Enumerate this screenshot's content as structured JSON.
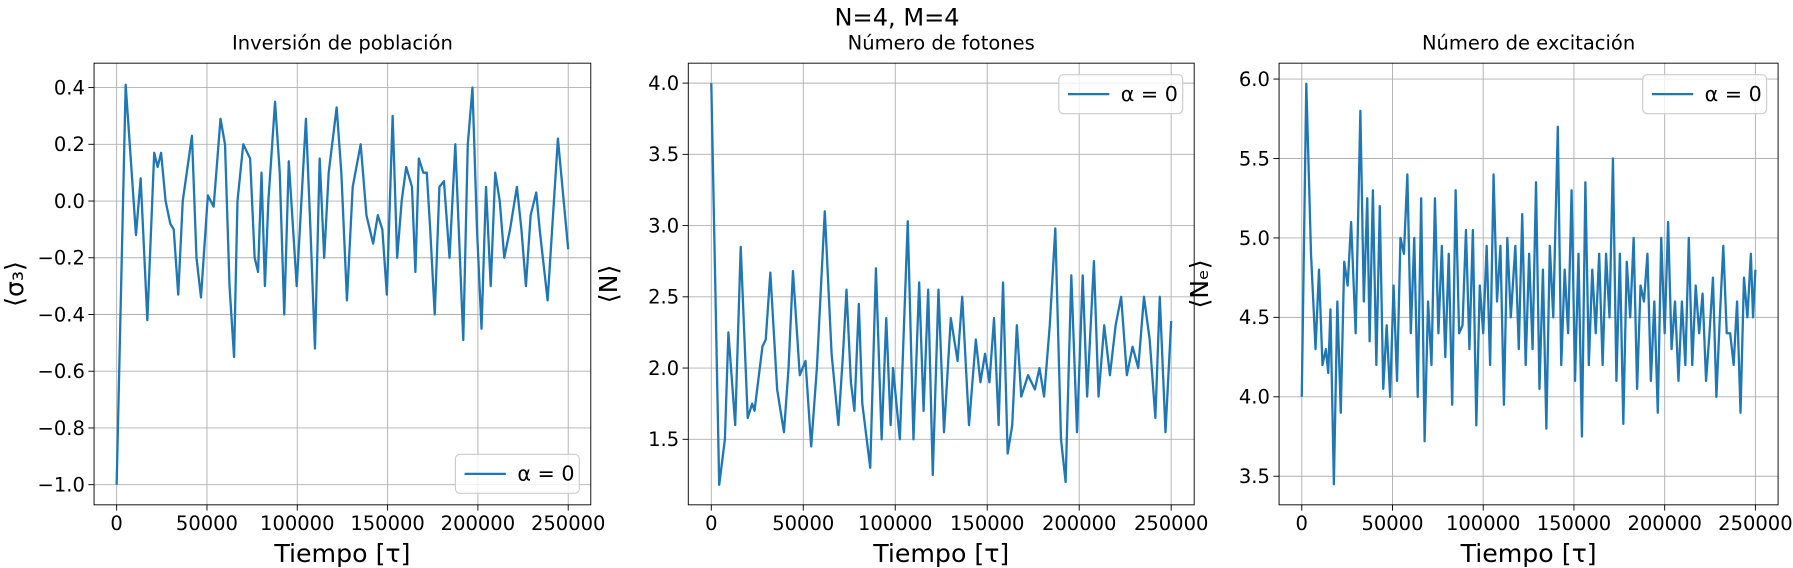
{
  "title": "N=4, M=4",
  "chart_data": [
    {
      "type": "line",
      "title": "Inversión de población",
      "xlabel": "Tiempo [τ]",
      "ylabel": "⟨σ₃⟩",
      "grid": true,
      "legend": "lower right",
      "xlim": [
        -12500,
        262500
      ],
      "xticks": [
        0,
        50000,
        100000,
        150000,
        200000,
        250000
      ],
      "ylim": [
        -1.071,
        0.486
      ],
      "yticks": [
        {
          "value": -1.0,
          "label": "−1.0"
        },
        {
          "value": -0.8,
          "label": "−0.8"
        },
        {
          "value": -0.6,
          "label": "−0.6"
        },
        {
          "value": -0.4,
          "label": "−0.4"
        },
        {
          "value": -0.2,
          "label": "−0.2"
        },
        {
          "value": 0.0,
          "label": "0.0"
        },
        0.2,
        0.4
      ],
      "x": [
        0,
        5000,
        10700,
        13300,
        17000,
        20800,
        22700,
        24600,
        27100,
        29700,
        31600,
        34100,
        36600,
        41700,
        44200,
        46700,
        50500,
        53700,
        57500,
        60000,
        62500,
        65000,
        66900,
        70100,
        73900,
        76400,
        78300,
        80200,
        82100,
        84000,
        87700,
        90300,
        92800,
        95300,
        99700,
        104800,
        107300,
        109800,
        112400,
        114900,
        117400,
        121800,
        124400,
        127500,
        130700,
        135100,
        138300,
        142000,
        144600,
        147100,
        149600,
        152800,
        155300,
        157800,
        160300,
        163500,
        165400,
        167300,
        169800,
        171700,
        173600,
        176100,
        178700,
        181200,
        184300,
        187500,
        191900,
        194400,
        197000,
        199500,
        202000,
        204500,
        207100,
        209600,
        212100,
        214600,
        217800,
        221600,
        224100,
        226600,
        229200,
        232300,
        234200,
        238600,
        244300,
        247500,
        250000
      ],
      "series": [
        {
          "name": "α = 0",
          "color": "#1f77b4",
          "values": [
            -1.0,
            0.41,
            -0.12,
            0.08,
            -0.42,
            0.17,
            0.12,
            0.17,
            0.0,
            -0.08,
            -0.1,
            -0.33,
            0.0,
            0.23,
            -0.2,
            -0.34,
            0.02,
            -0.02,
            0.29,
            0.2,
            -0.3,
            -0.55,
            0.0,
            0.2,
            0.15,
            -0.2,
            -0.25,
            0.1,
            -0.3,
            0.0,
            0.35,
            0.1,
            -0.4,
            0.14,
            -0.3,
            0.29,
            -0.1,
            -0.52,
            0.15,
            -0.2,
            0.1,
            0.33,
            0.1,
            -0.35,
            0.05,
            0.2,
            -0.05,
            -0.15,
            -0.05,
            -0.1,
            -0.33,
            0.3,
            -0.2,
            0.0,
            0.12,
            0.05,
            -0.25,
            0.15,
            0.1,
            0.1,
            -0.1,
            -0.4,
            0.05,
            0.07,
            -0.2,
            0.2,
            -0.49,
            0.2,
            0.4,
            -0.1,
            -0.45,
            0.05,
            -0.3,
            0.1,
            0.0,
            -0.2,
            -0.1,
            0.05,
            -0.1,
            -0.3,
            -0.05,
            0.03,
            -0.1,
            -0.35,
            0.22,
            0.0,
            -0.17
          ]
        }
      ]
    },
    {
      "type": "line",
      "title": "Número de  fotones",
      "xlabel": "Tiempo [τ]",
      "ylabel": "⟨N⟩",
      "grid": true,
      "legend": "upper right",
      "xlim": [
        -12500,
        262500
      ],
      "xticks": [
        0,
        50000,
        100000,
        150000,
        200000,
        250000
      ],
      "ylim": [
        1.04,
        4.14
      ],
      "yticks": [
        1.5,
        {
          "value": 2.0,
          "label": "2.0"
        },
        2.5,
        {
          "value": 3.0,
          "label": "3.0"
        },
        3.5,
        {
          "value": 4.0,
          "label": "4.0"
        }
      ],
      "x": [
        0,
        4300,
        7400,
        9300,
        13000,
        16000,
        19800,
        22200,
        23500,
        27800,
        29600,
        32100,
        35800,
        39500,
        42000,
        44400,
        48100,
        51200,
        54300,
        57400,
        61700,
        65400,
        69100,
        71600,
        73500,
        75900,
        77800,
        80200,
        82100,
        86400,
        89500,
        92600,
        95100,
        97500,
        98800,
        102500,
        106800,
        109900,
        113000,
        115400,
        117900,
        120400,
        123500,
        126500,
        130200,
        133900,
        136400,
        140100,
        143800,
        146300,
        148800,
        151200,
        153700,
        156200,
        158600,
        161100,
        163600,
        166100,
        168500,
        172200,
        175900,
        178400,
        180900,
        184000,
        187000,
        190100,
        192600,
        195700,
        198800,
        201900,
        204300,
        208000,
        210500,
        213600,
        216700,
        219800,
        222800,
        225900,
        229000,
        232100,
        235200,
        238300,
        241400,
        243800,
        246900,
        250000
      ],
      "series": [
        {
          "name": "α = 0",
          "color": "#1f77b4",
          "values": [
            4.0,
            1.18,
            1.5,
            2.25,
            1.6,
            2.85,
            1.65,
            1.75,
            1.7,
            2.15,
            2.2,
            2.67,
            1.85,
            1.55,
            2.0,
            2.68,
            1.95,
            2.05,
            1.45,
            2.0,
            3.1,
            2.1,
            1.6,
            2.1,
            2.55,
            1.9,
            1.7,
            2.45,
            1.75,
            1.3,
            2.7,
            1.5,
            2.35,
            1.6,
            2.0,
            1.5,
            3.03,
            1.5,
            2.6,
            1.7,
            2.55,
            1.25,
            2.55,
            1.55,
            2.35,
            2.05,
            2.5,
            1.6,
            2.2,
            1.9,
            2.1,
            1.9,
            2.35,
            1.6,
            2.6,
            1.4,
            1.6,
            2.3,
            1.8,
            1.95,
            1.85,
            2.0,
            1.8,
            2.3,
            2.98,
            1.5,
            1.2,
            2.65,
            1.55,
            2.65,
            1.8,
            2.75,
            1.8,
            2.3,
            1.95,
            2.3,
            2.5,
            1.95,
            2.15,
            2.0,
            2.5,
            2.2,
            1.65,
            2.5,
            1.55,
            2.33
          ]
        }
      ]
    },
    {
      "type": "line",
      "title": "Número de  excitación",
      "xlabel": "Tiempo [τ]",
      "ylabel": "⟨Nₑ⟩",
      "grid": true,
      "legend": "upper right",
      "xlim": [
        -12500,
        262500
      ],
      "xticks": [
        0,
        50000,
        100000,
        150000,
        200000,
        250000
      ],
      "ylim": [
        3.32,
        6.1
      ],
      "yticks": [
        3.5,
        {
          "value": 4.0,
          "label": "4.0"
        },
        4.5,
        {
          "value": 5.0,
          "label": "5.0"
        },
        5.5,
        {
          "value": 6.0,
          "label": "6.0"
        }
      ],
      "x": [
        0,
        2500,
        5100,
        7600,
        9500,
        11400,
        13300,
        14600,
        15800,
        17700,
        19600,
        21500,
        23400,
        25300,
        27200,
        29700,
        32300,
        34200,
        36100,
        37400,
        39200,
        41100,
        43000,
        44900,
        46800,
        48700,
        50600,
        52500,
        54400,
        56300,
        58200,
        60100,
        62000,
        63900,
        65800,
        67700,
        69600,
        71500,
        73400,
        75300,
        77200,
        79100,
        81000,
        82900,
        84800,
        86700,
        88600,
        90500,
        92400,
        94300,
        96200,
        98100,
        100000,
        101900,
        103800,
        105700,
        107600,
        109500,
        111400,
        113300,
        115200,
        117700,
        119600,
        121500,
        123400,
        125300,
        127200,
        129100,
        131000,
        132900,
        134800,
        136700,
        138600,
        141100,
        143000,
        144900,
        146800,
        148700,
        150600,
        152500,
        154400,
        156300,
        158200,
        160100,
        162000,
        163900,
        165800,
        167700,
        169600,
        171500,
        173400,
        175300,
        177200,
        179100,
        181000,
        182900,
        184800,
        186700,
        188600,
        190500,
        192400,
        194300,
        196200,
        198100,
        200000,
        201900,
        203800,
        205700,
        207600,
        209500,
        211400,
        213300,
        215200,
        217100,
        219000,
        220900,
        222800,
        224700,
        226600,
        228500,
        230400,
        232300,
        234200,
        236100,
        238000,
        239900,
        241800,
        243700,
        245600,
        247500,
        248700,
        250000
      ],
      "series": [
        {
          "name": "α = 0",
          "color": "#1f77b4",
          "values": [
            4.0,
            5.97,
            4.9,
            4.3,
            4.8,
            4.2,
            4.3,
            4.15,
            4.55,
            3.45,
            4.6,
            3.9,
            4.85,
            4.7,
            5.1,
            4.4,
            5.8,
            4.6,
            5.25,
            4.35,
            5.3,
            4.2,
            5.2,
            4.05,
            4.45,
            4.0,
            4.7,
            4.1,
            5.0,
            4.9,
            5.4,
            4.4,
            5.0,
            4.0,
            5.25,
            3.72,
            4.6,
            4.2,
            5.25,
            4.4,
            4.95,
            4.25,
            4.9,
            3.95,
            5.3,
            4.4,
            4.45,
            5.05,
            4.3,
            5.05,
            3.82,
            4.7,
            4.4,
            4.95,
            4.2,
            5.4,
            4.6,
            4.95,
            3.95,
            5.0,
            4.5,
            4.95,
            4.3,
            5.15,
            4.2,
            4.9,
            4.3,
            5.35,
            4.05,
            4.8,
            3.8,
            4.95,
            4.5,
            5.7,
            4.2,
            4.8,
            4.4,
            5.3,
            4.1,
            4.9,
            3.75,
            5.35,
            4.2,
            4.8,
            4.4,
            4.9,
            4.2,
            4.9,
            4.5,
            5.5,
            4.1,
            4.9,
            3.83,
            4.85,
            4.5,
            5.0,
            4.05,
            4.7,
            4.6,
            4.9,
            4.1,
            4.6,
            3.9,
            5.0,
            4.4,
            5.1,
            4.3,
            4.6,
            4.1,
            4.6,
            4.2,
            5.0,
            4.2,
            4.7,
            4.4,
            4.65,
            4.1,
            4.4,
            4.75,
            4.0,
            4.5,
            4.95,
            4.4,
            4.4,
            4.2,
            4.6,
            3.9,
            4.75,
            4.5,
            4.9,
            4.5,
            4.8
          ]
        }
      ]
    }
  ]
}
